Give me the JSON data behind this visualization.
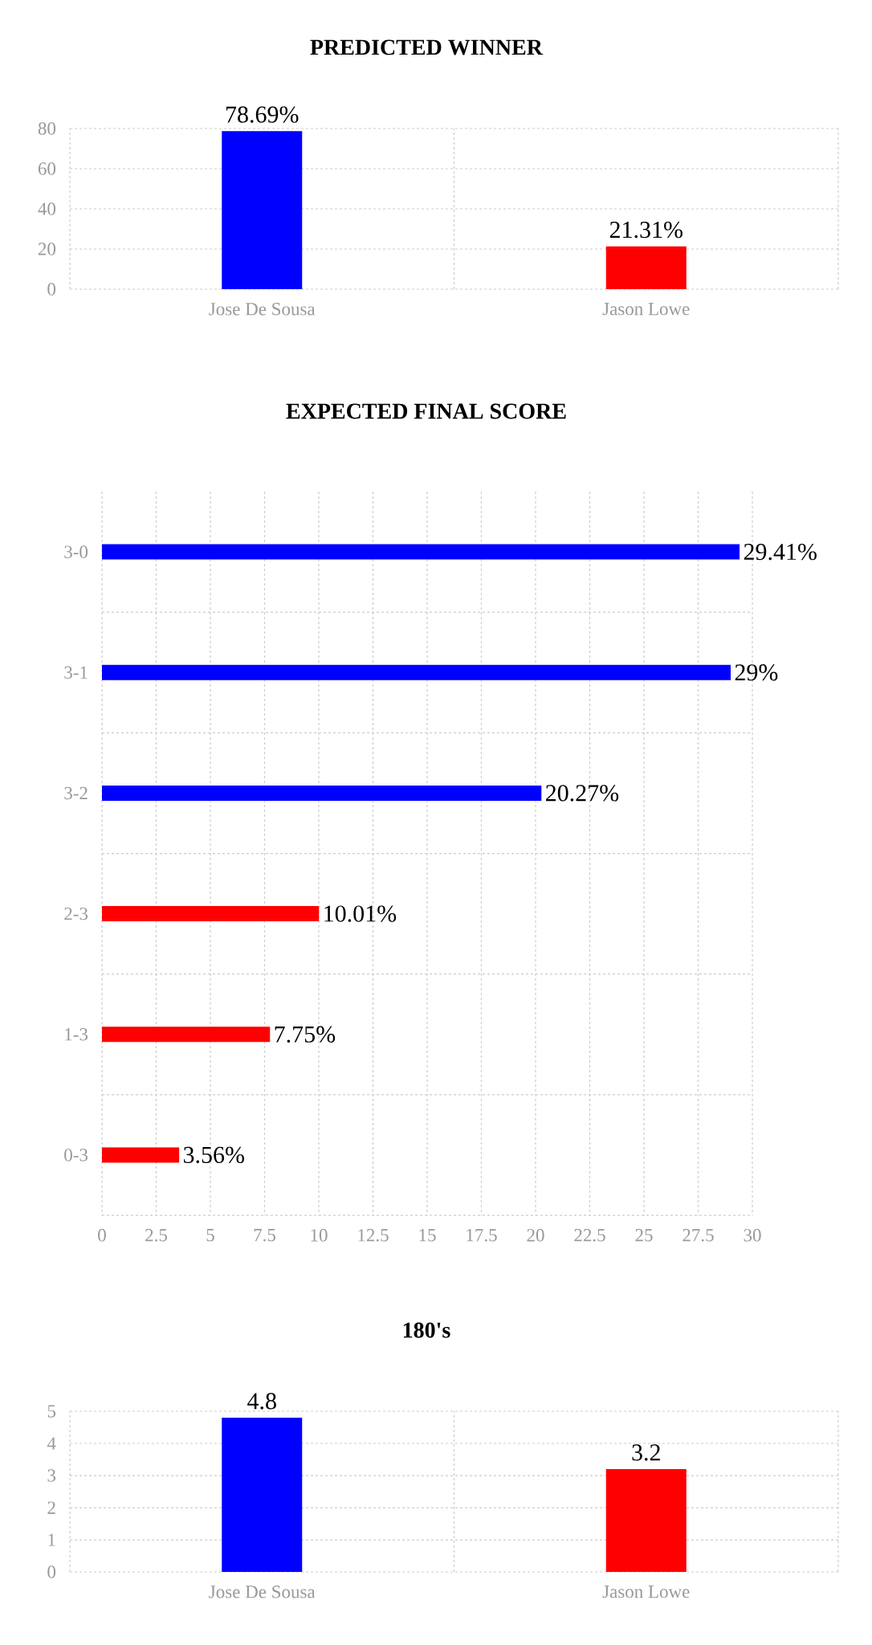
{
  "chart_data": [
    {
      "type": "bar",
      "title": "PREDICTED WINNER",
      "categories": [
        "Jose De Sousa",
        "Jason Lowe"
      ],
      "values": [
        78.69,
        21.31
      ],
      "colors": [
        "#0000ff",
        "#ff0000"
      ],
      "ylim": [
        0,
        80
      ],
      "yticks": [
        0,
        20,
        40,
        60,
        80
      ],
      "grid": true,
      "value_labels": [
        "78.69%",
        "21.31%"
      ]
    },
    {
      "type": "bar",
      "orientation": "horizontal",
      "title": "EXPECTED FINAL SCORE",
      "categories": [
        "3-0",
        "3-1",
        "3-2",
        "2-3",
        "1-3",
        "0-3"
      ],
      "values": [
        29.41,
        29,
        20.27,
        10.01,
        7.75,
        3.56
      ],
      "colors": [
        "#0000ff",
        "#0000ff",
        "#0000ff",
        "#ff0000",
        "#ff0000",
        "#ff0000"
      ],
      "xlim": [
        0,
        30
      ],
      "xticks": [
        0,
        2.5,
        5,
        7.5,
        10,
        12.5,
        15,
        17.5,
        20,
        22.5,
        25,
        27.5,
        30
      ],
      "grid": true,
      "value_labels": [
        "29.41%",
        "29%",
        "20.27%",
        "10.01%",
        "7.75%",
        "3.56%"
      ]
    },
    {
      "type": "bar",
      "title": "180's",
      "categories": [
        "Jose De Sousa",
        "Jason Lowe"
      ],
      "values": [
        4.8,
        3.2
      ],
      "colors": [
        "#0000ff",
        "#ff0000"
      ],
      "ylim": [
        0,
        5
      ],
      "yticks": [
        0,
        1,
        2,
        3,
        4,
        5
      ],
      "grid": true,
      "data_labels": true
    }
  ]
}
